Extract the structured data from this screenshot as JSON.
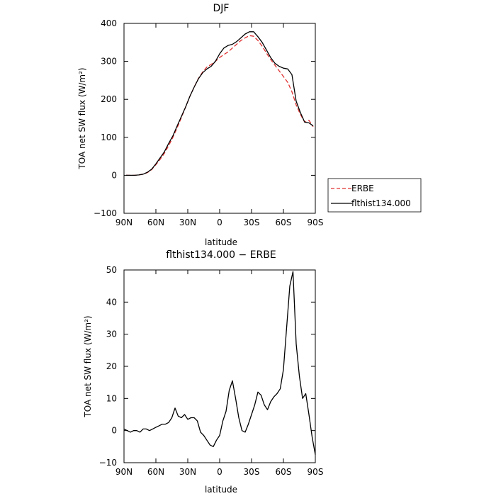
{
  "chart_data": [
    {
      "type": "line",
      "title": "DJF",
      "xlabel": "latitude",
      "ylabel": "TOA net SW flux (W/m²)",
      "xlim": [
        -90,
        90
      ],
      "ylim": [
        -100,
        400
      ],
      "x_ticks": [
        {
          "value": -90,
          "label": "90N"
        },
        {
          "value": -60,
          "label": "60N"
        },
        {
          "value": -30,
          "label": "30N"
        },
        {
          "value": 0,
          "label": "0"
        },
        {
          "value": 30,
          "label": "30S"
        },
        {
          "value": 60,
          "label": "60S"
        },
        {
          "value": 90,
          "label": "90S"
        }
      ],
      "y_ticks": [
        -100,
        0,
        100,
        200,
        300,
        400
      ],
      "legend_position": "right",
      "series": [
        {
          "name": "ERBE",
          "color": "#e03030",
          "dash": "dashed",
          "x": [
            -88,
            -84,
            -80,
            -76,
            -72,
            -68,
            -64,
            -60,
            -56,
            -52,
            -48,
            -44,
            -40,
            -36,
            -32,
            -28,
            -24,
            -20,
            -16,
            -12,
            -8,
            -4,
            0,
            4,
            8,
            12,
            16,
            20,
            24,
            28,
            32,
            36,
            40,
            44,
            48,
            52,
            56,
            60,
            64,
            68,
            72,
            76,
            80,
            84,
            88
          ],
          "values": [
            0,
            0,
            0,
            1,
            3,
            7,
            15,
            28,
            42,
            58,
            78,
            100,
            125,
            152,
            180,
            208,
            232,
            255,
            272,
            285,
            292,
            300,
            310,
            318,
            325,
            335,
            345,
            355,
            362,
            368,
            366,
            355,
            340,
            322,
            305,
            290,
            275,
            260,
            245,
            220,
            185,
            160,
            140,
            145,
            128
          ]
        },
        {
          "name": "flthist134.000",
          "color": "#000000",
          "dash": "solid",
          "x": [
            -88,
            -84,
            -80,
            -76,
            -72,
            -68,
            -64,
            -60,
            -56,
            -52,
            -48,
            -44,
            -40,
            -36,
            -32,
            -28,
            -24,
            -20,
            -16,
            -12,
            -8,
            -4,
            0,
            4,
            8,
            12,
            16,
            20,
            24,
            28,
            32,
            36,
            40,
            44,
            48,
            52,
            56,
            60,
            64,
            68,
            72,
            76,
            80,
            84,
            88
          ],
          "values": [
            0,
            0,
            0,
            1,
            3,
            8,
            16,
            30,
            46,
            62,
            84,
            104,
            130,
            155,
            180,
            208,
            232,
            254,
            270,
            280,
            287,
            300,
            320,
            335,
            342,
            345,
            352,
            362,
            372,
            378,
            378,
            365,
            350,
            330,
            310,
            295,
            287,
            282,
            280,
            265,
            195,
            165,
            140,
            138,
            130
          ]
        }
      ]
    },
    {
      "type": "line",
      "title": "flthist134.000 − ERBE",
      "xlabel": "latitude",
      "ylabel": "TOA net SW flux (W/m²)",
      "xlim": [
        -90,
        90
      ],
      "ylim": [
        -10,
        50
      ],
      "x_ticks": [
        {
          "value": -90,
          "label": "90N"
        },
        {
          "value": -60,
          "label": "60N"
        },
        {
          "value": -30,
          "label": "30N"
        },
        {
          "value": 0,
          "label": "0"
        },
        {
          "value": 30,
          "label": "30S"
        },
        {
          "value": 60,
          "label": "60S"
        },
        {
          "value": 90,
          "label": "90S"
        }
      ],
      "y_ticks": [
        -10,
        0,
        10,
        20,
        30,
        40,
        50
      ],
      "series": [
        {
          "color": "#000000",
          "dash": "solid",
          "x": [
            -90,
            -87,
            -84,
            -81,
            -78,
            -75,
            -72,
            -69,
            -66,
            -63,
            -60,
            -57,
            -54,
            -51,
            -48,
            -45,
            -42,
            -39,
            -36,
            -33,
            -30,
            -27,
            -24,
            -21,
            -18,
            -15,
            -12,
            -9,
            -6,
            -3,
            0,
            3,
            6,
            9,
            12,
            15,
            18,
            21,
            24,
            27,
            30,
            33,
            36,
            39,
            42,
            45,
            48,
            51,
            54,
            57,
            60,
            63,
            66,
            69,
            72,
            75,
            78,
            81,
            84,
            87,
            90
          ],
          "values": [
            0.5,
            0,
            -0.5,
            0,
            0,
            -0.5,
            0.5,
            0.5,
            0,
            0.5,
            1,
            1.5,
            2,
            2,
            2.5,
            4,
            7,
            4.5,
            4,
            5,
            3.5,
            4,
            4,
            3,
            -0.5,
            -1.5,
            -3,
            -4.5,
            -5,
            -3,
            -1.5,
            3,
            6,
            12.5,
            15.5,
            10,
            4,
            0,
            -0.5,
            2,
            5,
            8,
            12,
            11,
            8,
            6.5,
            9,
            10.5,
            11.5,
            13,
            19,
            32,
            45,
            49.5,
            27,
            17,
            10,
            11.5,
            5,
            -2,
            -7.5
          ]
        }
      ]
    }
  ]
}
